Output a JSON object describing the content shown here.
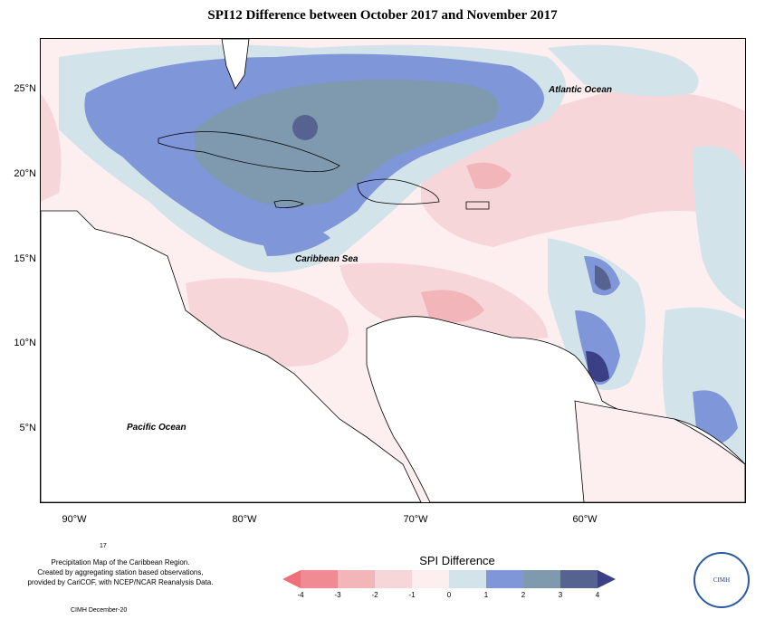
{
  "title": "SPI12 Difference between October 2017 and November 2017",
  "latitude_labels": [
    "25°N",
    "20°N",
    "15°N",
    "10°N",
    "5°N"
  ],
  "longitude_labels": [
    "90°W",
    "80°W",
    "70°W",
    "60°W"
  ],
  "ocean_labels": {
    "atlantic": "Atlantic Ocean",
    "caribbean": "Caribbean Sea",
    "pacific": "Pacific Ocean"
  },
  "caption": {
    "number": "17",
    "line1": "Precipitation Map of the Caribbean Region.",
    "line2": "Created by aggregating station based observations,",
    "line3": "provided by CariCOF, with NCEP/NCAR Reanalysis Data.",
    "footer": "CIMH December-20"
  },
  "legend": {
    "title": "SPI Difference",
    "ticks": [
      "-4",
      "-3",
      "-2",
      "-1",
      "0",
      "1",
      "2",
      "3",
      "4"
    ],
    "colors": [
      "#f08a93",
      "#f1b5ba",
      "#f7d6da",
      "#fdeef0",
      "#d3e3ea",
      "#7f96d8",
      "#7f9aaf",
      "#56628f"
    ],
    "low_arrow_color": "#ef6f7b",
    "high_arrow_color": "#3b3f86"
  },
  "logo": {
    "text": "CIMH"
  }
}
